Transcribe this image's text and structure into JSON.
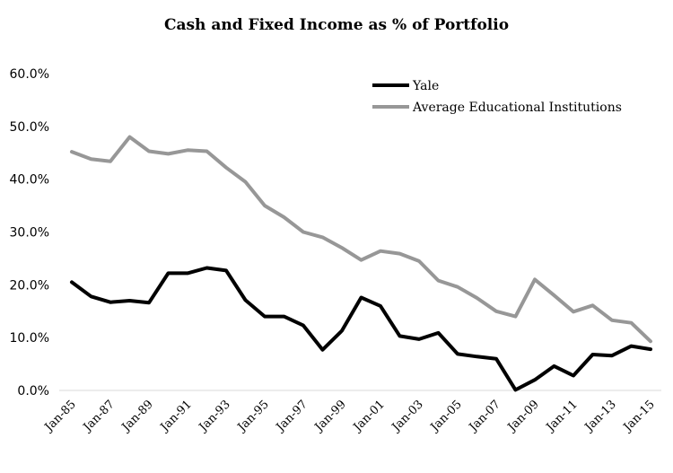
{
  "chart_data": {
    "type": "line",
    "title": "Cash and Fixed Income as % of Portfolio",
    "xlabel": "",
    "ylabel": "",
    "ylim": [
      0,
      60
    ],
    "y_ticks": [
      "0.0%",
      "10.0%",
      "20.0%",
      "30.0%",
      "40.0%",
      "50.0%",
      "60.0%"
    ],
    "y_tick_values": [
      0,
      10,
      20,
      30,
      40,
      50,
      60
    ],
    "x": [
      "1985",
      "1986",
      "1987",
      "1988",
      "1989",
      "1990",
      "1991",
      "1992",
      "1993",
      "1994",
      "1995",
      "1996",
      "1997",
      "1998",
      "1999",
      "2000",
      "2001",
      "2002",
      "2003",
      "2004",
      "2005",
      "2006",
      "2007",
      "2008",
      "2009",
      "2010",
      "2011",
      "2012",
      "2013",
      "2014",
      "2015"
    ],
    "x_tick_labels": [
      "Jan-85",
      "Jan-87",
      "Jan-89",
      "Jan-91",
      "Jan-93",
      "Jan-95",
      "Jan-97",
      "Jan-99",
      "Jan-01",
      "Jan-03",
      "Jan-05",
      "Jan-07",
      "Jan-09",
      "Jan-11",
      "Jan-13",
      "Jan-15"
    ],
    "grid": false,
    "legend_position": "top-right",
    "series": [
      {
        "name": "Yale",
        "color": "#000000",
        "values": [
          20.5,
          17.8,
          16.7,
          17.0,
          16.6,
          22.2,
          22.2,
          23.2,
          22.7,
          17.1,
          14.0,
          14.0,
          12.3,
          7.7,
          11.3,
          17.6,
          16.0,
          10.3,
          9.7,
          10.9,
          6.9,
          6.4,
          6.0,
          0.1,
          2.0,
          4.6,
          2.8,
          6.8,
          6.6,
          8.4,
          7.8
        ]
      },
      {
        "name": "Average Educational Institutions",
        "color": "#979797",
        "values": [
          45.2,
          43.8,
          43.4,
          48.0,
          45.3,
          44.8,
          45.5,
          45.3,
          42.2,
          39.5,
          35.0,
          32.8,
          30.0,
          29.0,
          27.0,
          24.7,
          26.4,
          25.9,
          24.5,
          20.8,
          19.6,
          17.5,
          15.0,
          14.0,
          21.0,
          18.0,
          14.9,
          16.1,
          13.3,
          12.8,
          9.3
        ]
      }
    ]
  }
}
